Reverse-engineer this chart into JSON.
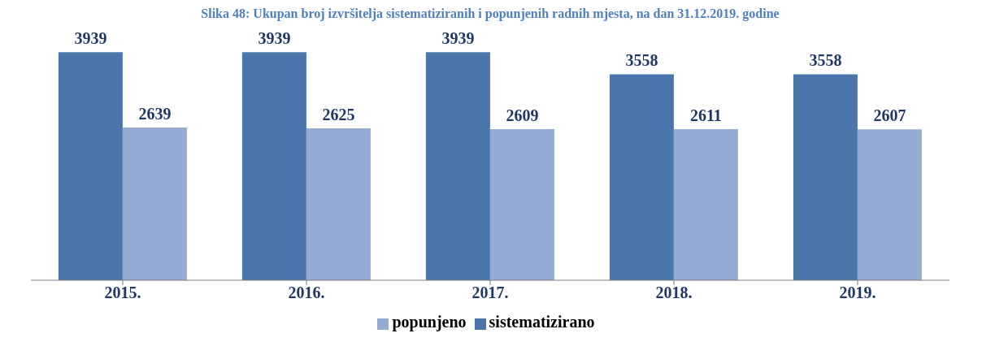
{
  "chart_data": {
    "type": "bar",
    "title": "Slika 48: Ukupan broj izvršitelja sistematiziranih i popunjenih radnih mjesta, na dan 31.12.2019. godine",
    "categories": [
      "2015.",
      "2016.",
      "2017.",
      "2018.",
      "2019."
    ],
    "series": [
      {
        "name": "sistematizirano",
        "color": "#4a76ab",
        "values": [
          3939,
          3939,
          3939,
          3558,
          3558
        ]
      },
      {
        "name": "popunjeno",
        "color": "#96abd3",
        "values": [
          2639,
          2625,
          2609,
          2611,
          2607
        ]
      }
    ],
    "data_labels": true,
    "legend": "bottom",
    "grid": false
  }
}
